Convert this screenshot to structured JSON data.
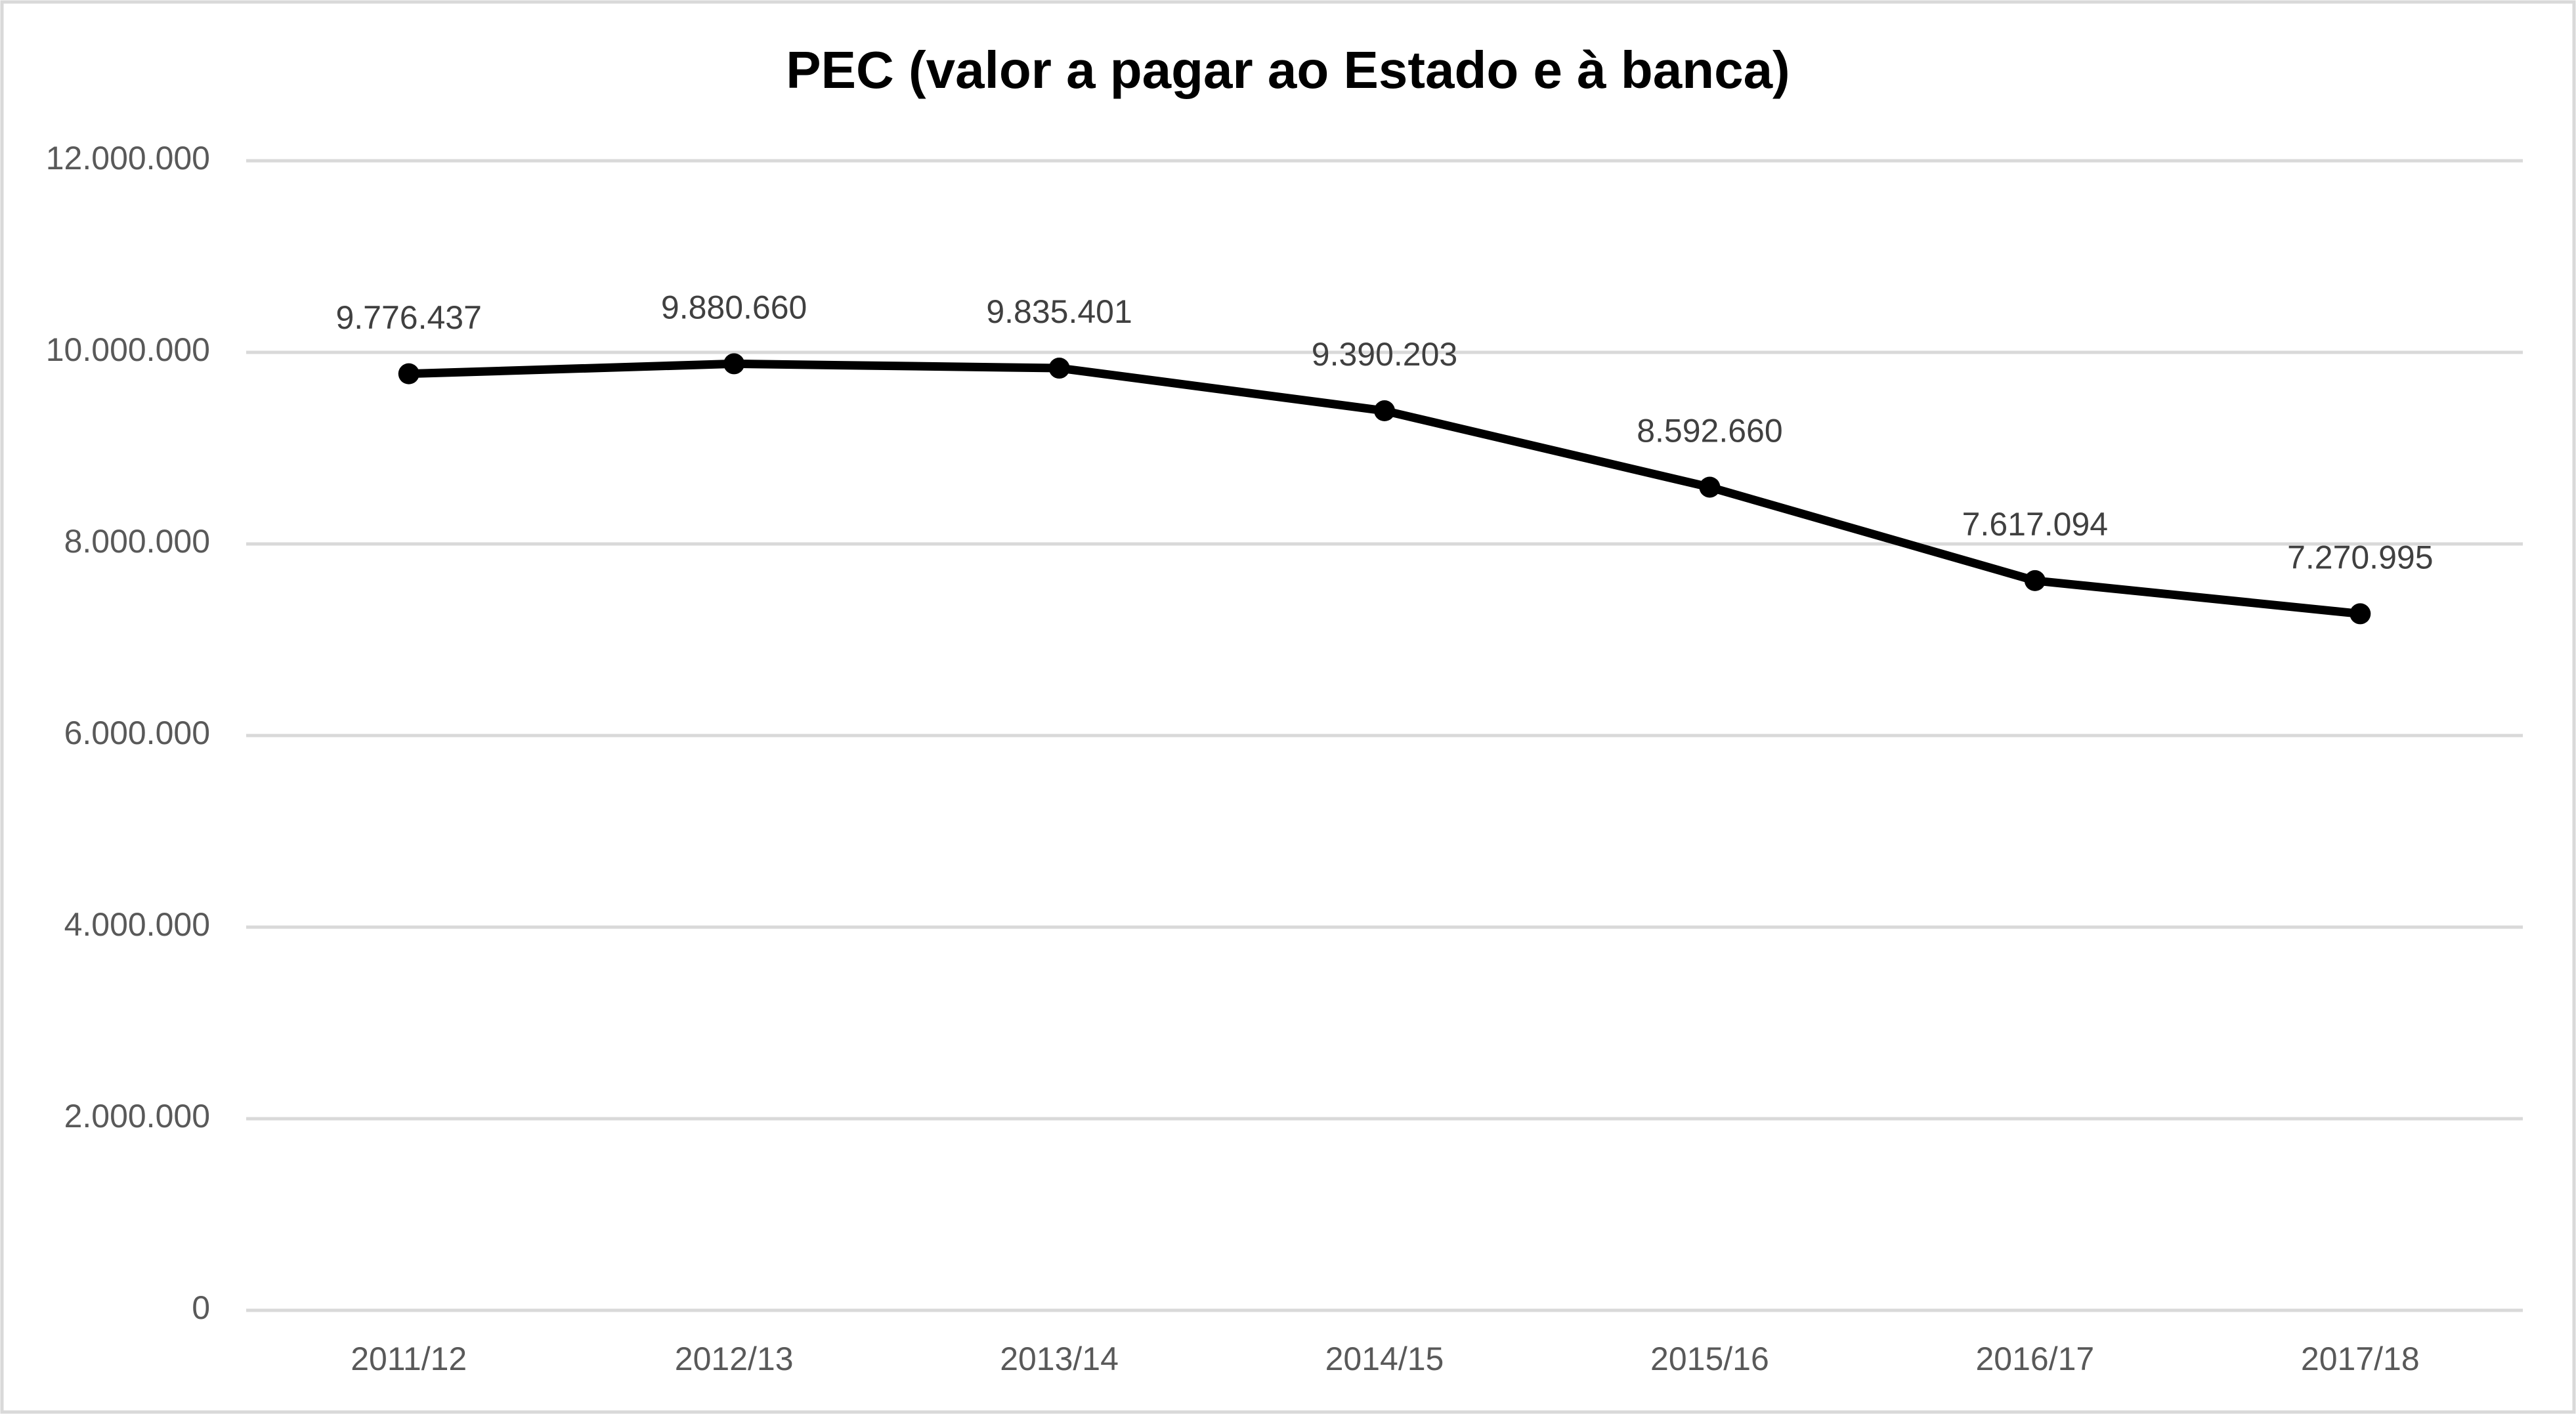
{
  "chart_data": {
    "type": "line",
    "title": "PEC (valor a pagar ao Estado e à banca)",
    "categories": [
      "2011/12",
      "2012/13",
      "2013/14",
      "2014/15",
      "2015/16",
      "2016/17",
      "2017/18"
    ],
    "series": [
      {
        "color": "#000000",
        "values": [
          9776437,
          9880660,
          9835401,
          9390203,
          8592660,
          7617094,
          7270995
        ],
        "value_labels": [
          "9.776.437",
          "9.880.660",
          "9.835.401",
          "9.390.203",
          "8.592.660",
          "7.617.094",
          "7.270.995"
        ]
      }
    ],
    "ylim": [
      0,
      12000000
    ],
    "yticks": [
      0,
      {
        "value": 2000000,
        "label": "2.000.000"
      },
      {
        "value": 4000000,
        "label": "4.000.000"
      },
      {
        "value": 6000000,
        "label": "6.000.000"
      },
      {
        "value": 8000000,
        "label": "8.000.000"
      },
      {
        "value": 10000000,
        "label": "10.000.000"
      },
      {
        "value": 12000000,
        "label": "12.000.000"
      }
    ],
    "grid": true
  }
}
